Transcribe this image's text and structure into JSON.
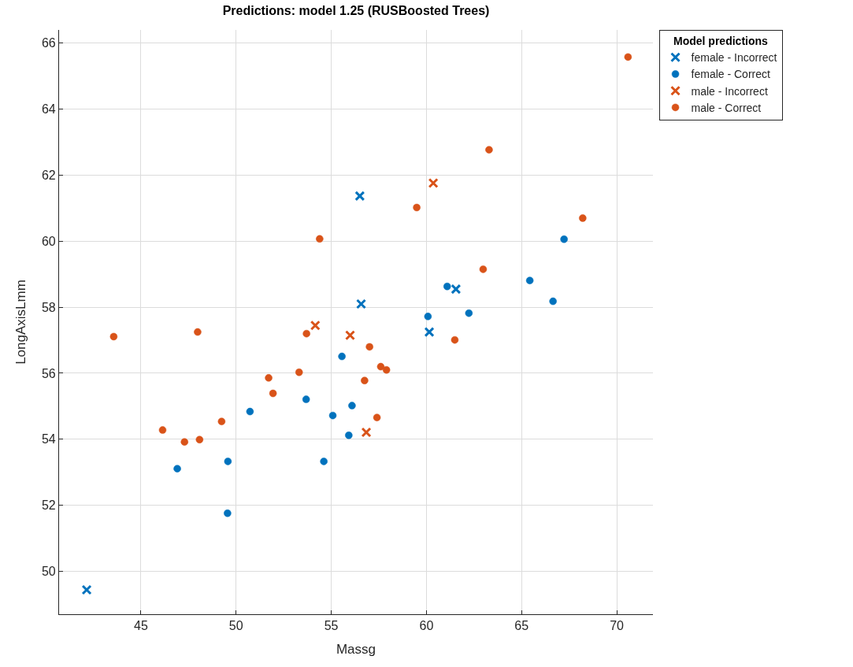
{
  "chart_data": {
    "type": "scatter",
    "title": "Predictions: model 1.25 (RUSBoosted Trees)",
    "xlabel": "Massg",
    "ylabel": "LongAxisLmm",
    "legend_title": "Model predictions",
    "legend": "top right",
    "grid": true,
    "xlim": [
      40.7,
      71.9
    ],
    "xticks": [
      45,
      50,
      55,
      60,
      65,
      70
    ],
    "ylim": [
      48.7,
      66.4
    ],
    "yticks": [
      50,
      52,
      54,
      56,
      58,
      60,
      62,
      64,
      66
    ],
    "series": [
      {
        "name": "female - Incorrect",
        "color": "#0072bd",
        "marker": "cross",
        "x": [
          56.5,
          56.57,
          61.55,
          60.15,
          42.15
        ],
        "values": [
          61.37,
          58.1,
          58.55,
          57.25,
          49.44
        ]
      },
      {
        "name": "female - Correct",
        "color": "#0072bd",
        "marker": "circle",
        "x": [
          67.23,
          65.43,
          61.09,
          66.65,
          62.23,
          60.08,
          55.56,
          53.68,
          56.09,
          50.73,
          55.08,
          55.92,
          46.91,
          49.57,
          54.61,
          49.55
        ],
        "values": [
          60.06,
          58.81,
          58.63,
          58.18,
          57.82,
          57.72,
          56.51,
          55.21,
          55.02,
          54.84,
          54.72,
          54.12,
          53.11,
          53.33,
          53.33,
          51.76
        ]
      },
      {
        "name": "male - Incorrect",
        "color": "#d95319",
        "marker": "cross",
        "x": [
          54.16,
          55.99,
          60.36,
          56.84
        ],
        "values": [
          57.45,
          57.15,
          61.76,
          54.21
        ]
      },
      {
        "name": "male - Correct",
        "color": "#d95319",
        "marker": "circle",
        "x": [
          54.39,
          53.7,
          43.57,
          47.98,
          70.59,
          63.29,
          59.49,
          68.21,
          62.98,
          61.49,
          57.01,
          53.31,
          51.71,
          56.75,
          51.94,
          49.24,
          46.14,
          47.29,
          48.08,
          57.6,
          57.9,
          57.4
        ],
        "values": [
          60.07,
          57.2,
          57.11,
          57.25,
          65.58,
          62.77,
          61.02,
          60.7,
          59.15,
          57.01,
          56.8,
          56.03,
          55.86,
          55.78,
          55.39,
          54.54,
          54.28,
          53.92,
          53.99,
          56.2,
          56.1,
          54.66
        ]
      }
    ]
  }
}
